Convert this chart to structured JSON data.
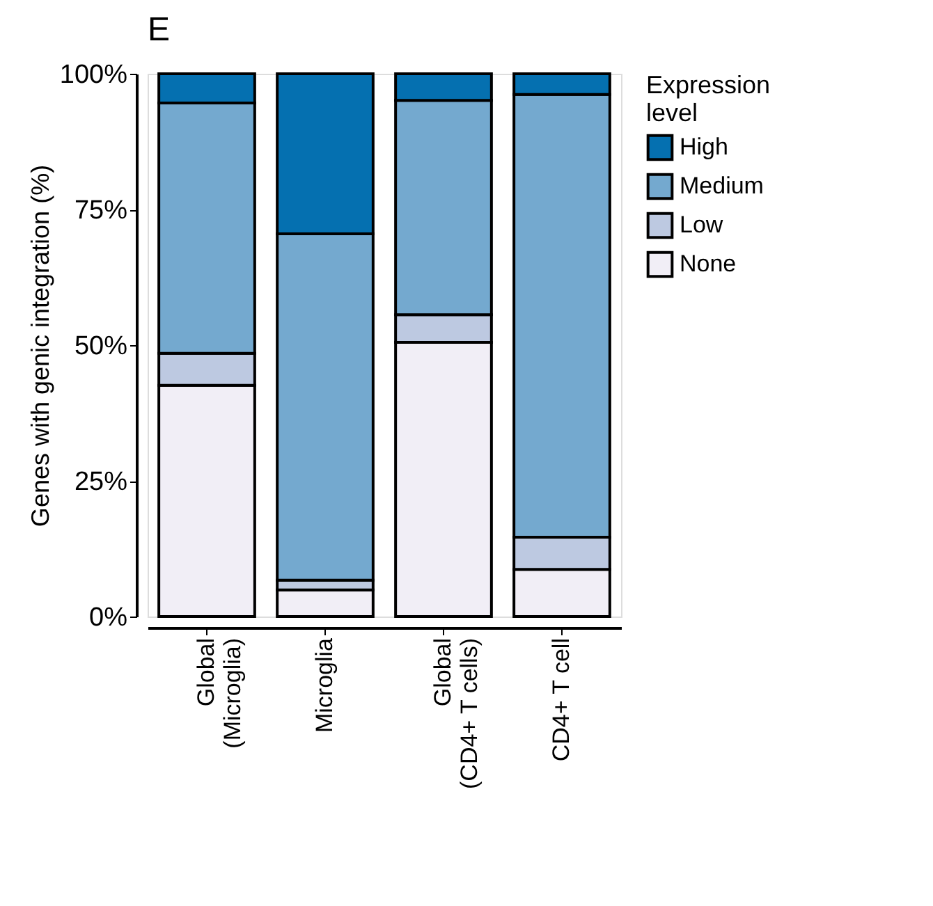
{
  "chart_data": {
    "type": "bar",
    "stacked": true,
    "title": "E",
    "ylabel": "Genes with genic integration (%)",
    "legend_title": "Expression level",
    "legend": "right",
    "categories": [
      "Global\n(Microglia)",
      "Microglia",
      "Global\n(CD4+ T cells)",
      "CD4+ T cell"
    ],
    "series": [
      {
        "name": "None",
        "color": "#f1eef6",
        "values": [
          42.6,
          4.9,
          50.5,
          8.7
        ]
      },
      {
        "name": "Low",
        "color": "#bdc9e1",
        "values": [
          5.9,
          1.8,
          5.1,
          5.9
        ]
      },
      {
        "name": "Medium",
        "color": "#74a9cf",
        "values": [
          46.1,
          63.8,
          39.5,
          81.6
        ]
      },
      {
        "name": "High",
        "color": "#0570b0",
        "values": [
          5.4,
          29.5,
          4.9,
          3.8
        ]
      }
    ],
    "ylim": [
      0,
      100
    ],
    "yticks": [
      {
        "value": 0,
        "label": "0%"
      },
      {
        "value": 25,
        "label": "25%"
      },
      {
        "value": 50,
        "label": "50%"
      },
      {
        "value": 75,
        "label": "75%"
      },
      {
        "value": 100,
        "label": "100%"
      }
    ],
    "grid": false
  }
}
